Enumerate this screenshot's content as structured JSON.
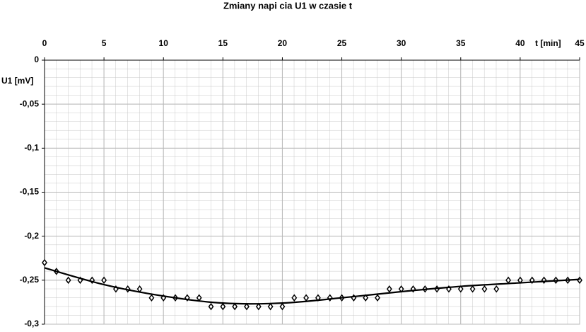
{
  "chart_data": {
    "type": "scatter",
    "title": "Zmiany napi  cia U1 w czasie t",
    "x_label": "t [min]",
    "y_label": "U1 [mV]",
    "xlim": [
      0,
      45
    ],
    "xticks": [
      0,
      5,
      10,
      15,
      20,
      25,
      30,
      35,
      40,
      45
    ],
    "ylim": [
      -0.3,
      0
    ],
    "yticks": [
      0,
      {
        "value": -0.05,
        "label": "-0,05"
      },
      {
        "value": -0.1,
        "label": "-0,1"
      },
      {
        "value": -0.15,
        "label": "-0,15"
      },
      {
        "value": -0.2,
        "label": "-0,2"
      },
      {
        "value": -0.25,
        "label": "-0,25"
      },
      {
        "value": -0.3,
        "label": "-0,3"
      }
    ],
    "grid": true,
    "series": [
      {
        "color": "#000000",
        "marker": "diamond",
        "x": [
          0,
          1,
          2,
          3,
          4,
          5,
          6,
          7,
          8,
          9,
          10,
          11,
          12,
          13,
          14,
          15,
          16,
          17,
          18,
          19,
          20,
          21,
          22,
          23,
          24,
          25,
          26,
          27,
          28,
          29,
          30,
          31,
          32,
          33,
          34,
          35,
          36,
          37,
          38,
          39,
          40,
          41,
          42,
          43,
          44,
          45
        ],
        "values": [
          -0.23,
          -0.24,
          -0.25,
          -0.25,
          -0.25,
          -0.25,
          -0.26,
          -0.26,
          -0.26,
          -0.27,
          -0.27,
          -0.27,
          -0.27,
          -0.27,
          -0.28,
          -0.28,
          -0.28,
          -0.28,
          -0.28,
          -0.28,
          -0.28,
          -0.27,
          -0.27,
          -0.27,
          -0.27,
          -0.27,
          -0.27,
          -0.27,
          -0.27,
          -0.26,
          -0.26,
          -0.26,
          -0.26,
          -0.26,
          -0.26,
          -0.26,
          -0.26,
          -0.26,
          -0.26,
          -0.25,
          -0.25,
          -0.25,
          -0.25,
          -0.25,
          -0.25,
          -0.25
        ]
      },
      {
        "color": "#000000",
        "line": true,
        "x": [
          0,
          5,
          10,
          15,
          20,
          25,
          30,
          35,
          40,
          45
        ],
        "values": [
          -0.236,
          -0.255,
          -0.268,
          -0.276,
          -0.276,
          -0.27,
          -0.263,
          -0.257,
          -0.253,
          -0.249
        ]
      }
    ]
  }
}
